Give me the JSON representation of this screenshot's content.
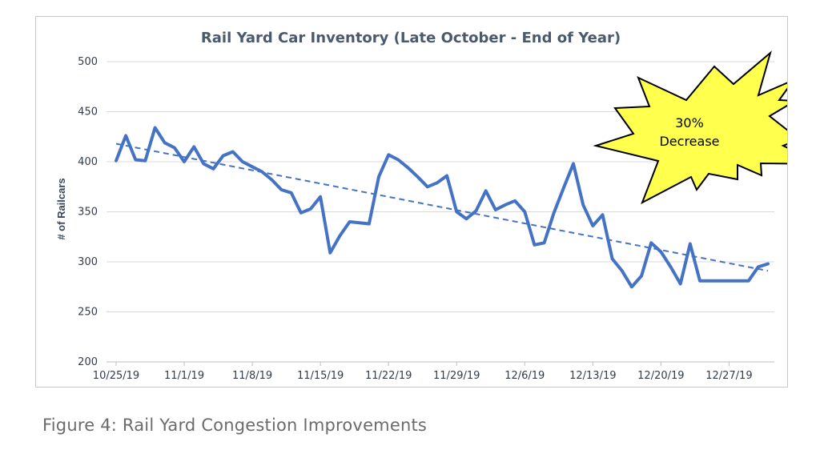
{
  "chart_data": {
    "type": "line",
    "title": "Rail Yard Car Inventory (Late October - End of Year)",
    "ylabel": "# of Railcars",
    "xlabel": "",
    "ylim": [
      200,
      500
    ],
    "yticks": [
      200,
      250,
      300,
      350,
      400,
      450,
      500
    ],
    "x_range": [
      "2019-10-25",
      "2019-12-31"
    ],
    "xticks": [
      "10/25/19",
      "11/1/19",
      "11/8/19",
      "11/15/19",
      "11/22/19",
      "11/29/19",
      "12/6/19",
      "12/13/19",
      "12/20/19",
      "12/27/19"
    ],
    "grid": true,
    "series": [
      {
        "type": "line",
        "color": "#4472C4",
        "points": [
          [
            "2019-10-25",
            401
          ],
          [
            "2019-10-26",
            426
          ],
          [
            "2019-10-27",
            402
          ],
          [
            "2019-10-28",
            401
          ],
          [
            "2019-10-29",
            434
          ],
          [
            "2019-10-30",
            419
          ],
          [
            "2019-10-31",
            414
          ],
          [
            "2019-11-01",
            400
          ],
          [
            "2019-11-02",
            415
          ],
          [
            "2019-11-03",
            398
          ],
          [
            "2019-11-04",
            393
          ],
          [
            "2019-11-05",
            406
          ],
          [
            "2019-11-06",
            410
          ],
          [
            "2019-11-07",
            400
          ],
          [
            "2019-11-08",
            395
          ],
          [
            "2019-11-09",
            390
          ],
          [
            "2019-11-10",
            382
          ],
          [
            "2019-11-11",
            372
          ],
          [
            "2019-11-12",
            369
          ],
          [
            "2019-11-13",
            349
          ],
          [
            "2019-11-14",
            353
          ],
          [
            "2019-11-15",
            365
          ],
          [
            "2019-11-16",
            309
          ],
          [
            "2019-11-17",
            326
          ],
          [
            "2019-11-18",
            340
          ],
          [
            "2019-11-19",
            339
          ],
          [
            "2019-11-20",
            338
          ],
          [
            "2019-11-21",
            385
          ],
          [
            "2019-11-22",
            407
          ],
          [
            "2019-11-23",
            402
          ],
          [
            "2019-11-24",
            394
          ],
          [
            "2019-11-25",
            385
          ],
          [
            "2019-11-26",
            375
          ],
          [
            "2019-11-27",
            379
          ],
          [
            "2019-11-28",
            386
          ],
          [
            "2019-11-29",
            350
          ],
          [
            "2019-11-30",
            343
          ],
          [
            "2019-12-01",
            351
          ],
          [
            "2019-12-02",
            371
          ],
          [
            "2019-12-03",
            352
          ],
          [
            "2019-12-04",
            357
          ],
          [
            "2019-12-05",
            361
          ],
          [
            "2019-12-06",
            350
          ],
          [
            "2019-12-07",
            317
          ],
          [
            "2019-12-08",
            319
          ],
          [
            "2019-12-09",
            349
          ],
          [
            "2019-12-10",
            374
          ],
          [
            "2019-12-11",
            398
          ],
          [
            "2019-12-12",
            357
          ],
          [
            "2019-12-13",
            336
          ],
          [
            "2019-12-14",
            347
          ],
          [
            "2019-12-15",
            303
          ],
          [
            "2019-12-16",
            291
          ],
          [
            "2019-12-17",
            275
          ],
          [
            "2019-12-18",
            286
          ],
          [
            "2019-12-19",
            319
          ],
          [
            "2019-12-20",
            310
          ],
          [
            "2019-12-21",
            295
          ],
          [
            "2019-12-22",
            278
          ],
          [
            "2019-12-23",
            318
          ],
          [
            "2019-12-24",
            281
          ],
          [
            "2019-12-25",
            281
          ],
          [
            "2019-12-26",
            281
          ],
          [
            "2019-12-27",
            281
          ],
          [
            "2019-12-28",
            281
          ],
          [
            "2019-12-29",
            281
          ],
          [
            "2019-12-30",
            295
          ],
          [
            "2019-12-31",
            298
          ]
        ]
      },
      {
        "type": "trendline",
        "style": "dashed",
        "color": "#4472C4",
        "points": [
          [
            "2019-10-25",
            418
          ],
          [
            "2019-12-31",
            291
          ]
        ]
      }
    ],
    "annotations": [
      {
        "text": "30%\nDecrease",
        "shape": "starburst",
        "fill": "#FFFF4D"
      }
    ]
  },
  "annotation": {
    "line1": "30%",
    "line2": "Decrease"
  },
  "caption": "Figure 4:  Rail Yard Congestion Improvements",
  "colors": {
    "series": "#4472C4",
    "burst_fill": "#FFFF4D",
    "grid": "#d9d9d9",
    "caption": "#6b6b6b"
  }
}
